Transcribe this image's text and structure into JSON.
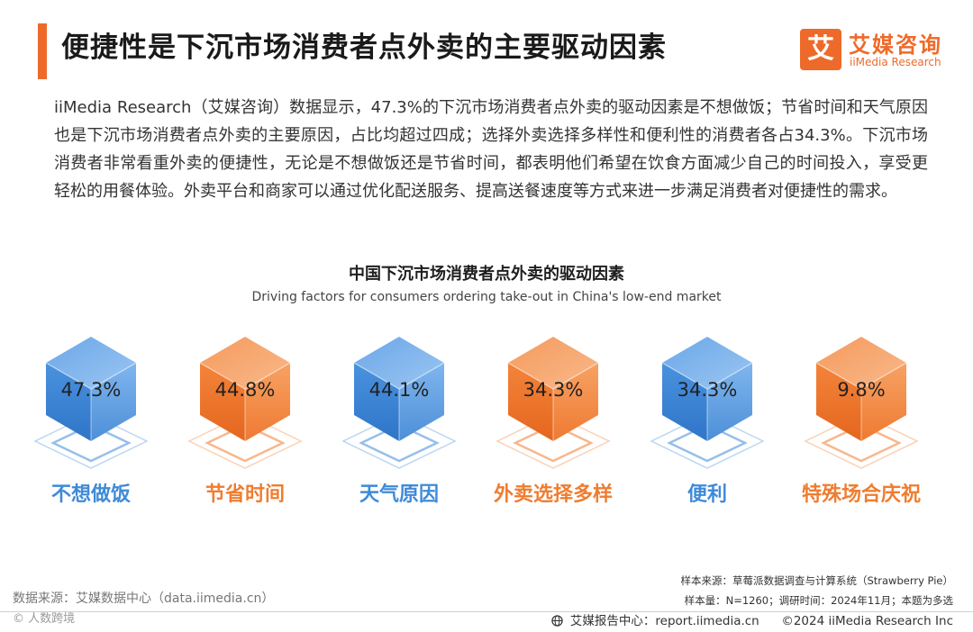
{
  "header": {
    "title": "便捷性是下沉市场消费者点外卖的主要驱动因素",
    "logo_mark": "艾",
    "logo_cn": "艾媒咨询",
    "logo_en": "iiMedia Research"
  },
  "body_text": "iiMedia Research（艾媒咨询）数据显示，47.3%的下沉市场消费者点外卖的驱动因素是不想做饭；节省时间和天气原因也是下沉市场消费者点外卖的主要原因，占比均超过四成；选择外卖选择多样性和便利性的消费者各占34.3%。下沉市场消费者非常看重外卖的便捷性，无论是不想做饭还是节省时间，都表明他们希望在饮食方面减少自己的时间投入，享受更轻松的用餐体验。外卖平台和商家可以通过优化配送服务、提高送餐速度等方式来进一步满足消费者对便捷性的需求。",
  "chart_data": {
    "type": "bar",
    "title": "中国下沉市场消费者点外卖的驱动因素",
    "subtitle": "Driving factors for consumers ordering take-out in China's low-end market",
    "categories": [
      "不想做饭",
      "节省时间",
      "天气原因",
      "外卖选择多样",
      "便利",
      "特殊场合庆祝"
    ],
    "values": [
      47.3,
      44.8,
      44.1,
      34.3,
      34.3,
      9.8
    ],
    "labels": [
      "47.3%",
      "44.8%",
      "44.1%",
      "34.3%",
      "34.3%",
      "9.8%"
    ],
    "unit": "%",
    "colors": [
      "blue",
      "orange",
      "blue",
      "orange",
      "blue",
      "orange"
    ]
  },
  "palette": {
    "accent": "#ee6a2a",
    "blue": "#3f8ad8",
    "orange": "#f07c2f"
  },
  "footer": {
    "sample_source": "样本来源：草莓派数据调查与计算系统（Strawberry Pie）",
    "sample_size": "样本量：N=1260；调研时间：2024年11月；本题为多选",
    "data_source": "数据来源：艾媒数据中心（data.iimedia.cn）",
    "watermark": "©  人数跨境",
    "report_center": "艾媒报告中心：report.iimedia.cn",
    "copyright": "©2024  iiMedia Research  Inc"
  }
}
